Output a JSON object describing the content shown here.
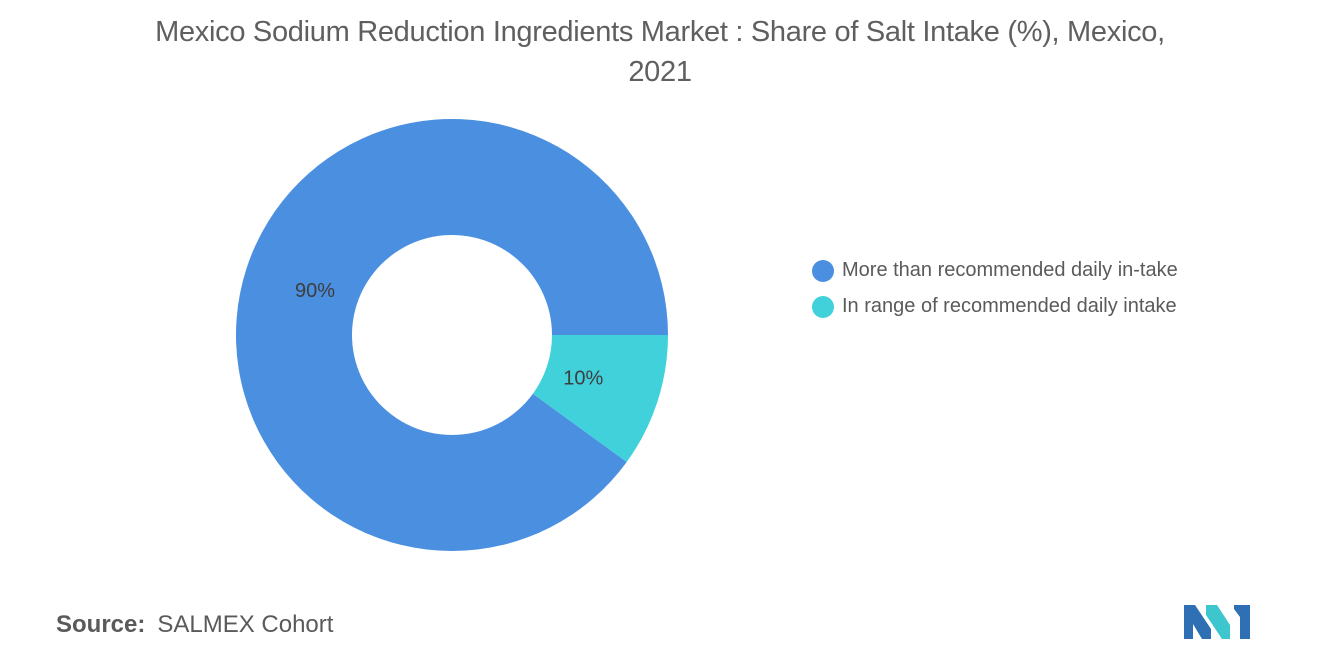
{
  "title": "Mexico Sodium Reduction Ingredients Market : Share of Salt Intake (%), Mexico, 2021",
  "chart_data": {
    "type": "pie",
    "variant": "donut",
    "title": "Mexico Sodium Reduction Ingredients Market : Share of Salt Intake (%), Mexico, 2021",
    "categories": [
      "More than recommended daily in-take",
      "In range of recommended daily intake"
    ],
    "values": [
      90,
      10
    ],
    "data_labels": [
      "90%",
      "10%"
    ],
    "colors": [
      "#4a8fe0",
      "#40d1db"
    ],
    "legend_position": "right"
  },
  "legend": {
    "items": [
      {
        "label": "More than recommended daily in-take",
        "color": "#4a8fe0"
      },
      {
        "label": "In range of recommended daily intake",
        "color": "#40d1db"
      }
    ]
  },
  "source": {
    "prefix": "Source:",
    "text": "SALMEX Cohort"
  },
  "logo": {
    "icon": "mordor-intelligence-logo-icon",
    "colors": [
      "#2f6fb3",
      "#3ec6cf"
    ]
  }
}
